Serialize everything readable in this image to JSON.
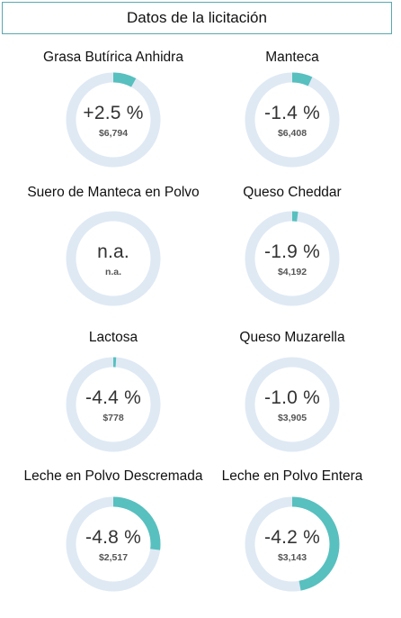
{
  "title": "Datos de la licitación",
  "colors": {
    "track": "#dfe9f4",
    "fill": "#58c0bf"
  },
  "chart_data": {
    "type": "donut",
    "items": [
      {
        "name": "Grasa Butírica Anhidra",
        "change": "+2.5 %",
        "price": "$6,794",
        "fill_fraction": 0.08
      },
      {
        "name": "Manteca",
        "change": "-1.4 %",
        "price": "$6,408",
        "fill_fraction": 0.07
      },
      {
        "name": "Suero de Manteca en Polvo",
        "change": "n.a.",
        "price": "n.a.",
        "fill_fraction": 0
      },
      {
        "name": "Queso Cheddar",
        "change": "-1.9 %",
        "price": "$4,192",
        "fill_fraction": 0.02
      },
      {
        "name": "Lactosa",
        "change": "-4.4 %",
        "price": "$778",
        "fill_fraction": 0.01
      },
      {
        "name": "Queso Muzarella",
        "change": "-1.0 %",
        "price": "$3,905",
        "fill_fraction": 0
      },
      {
        "name": "Leche en Polvo Descremada",
        "change": "-4.8 %",
        "price": "$2,517",
        "fill_fraction": 0.27
      },
      {
        "name": "Leche en Polvo Entera",
        "change": "-4.2 %",
        "price": "$3,143",
        "fill_fraction": 0.47
      }
    ]
  }
}
